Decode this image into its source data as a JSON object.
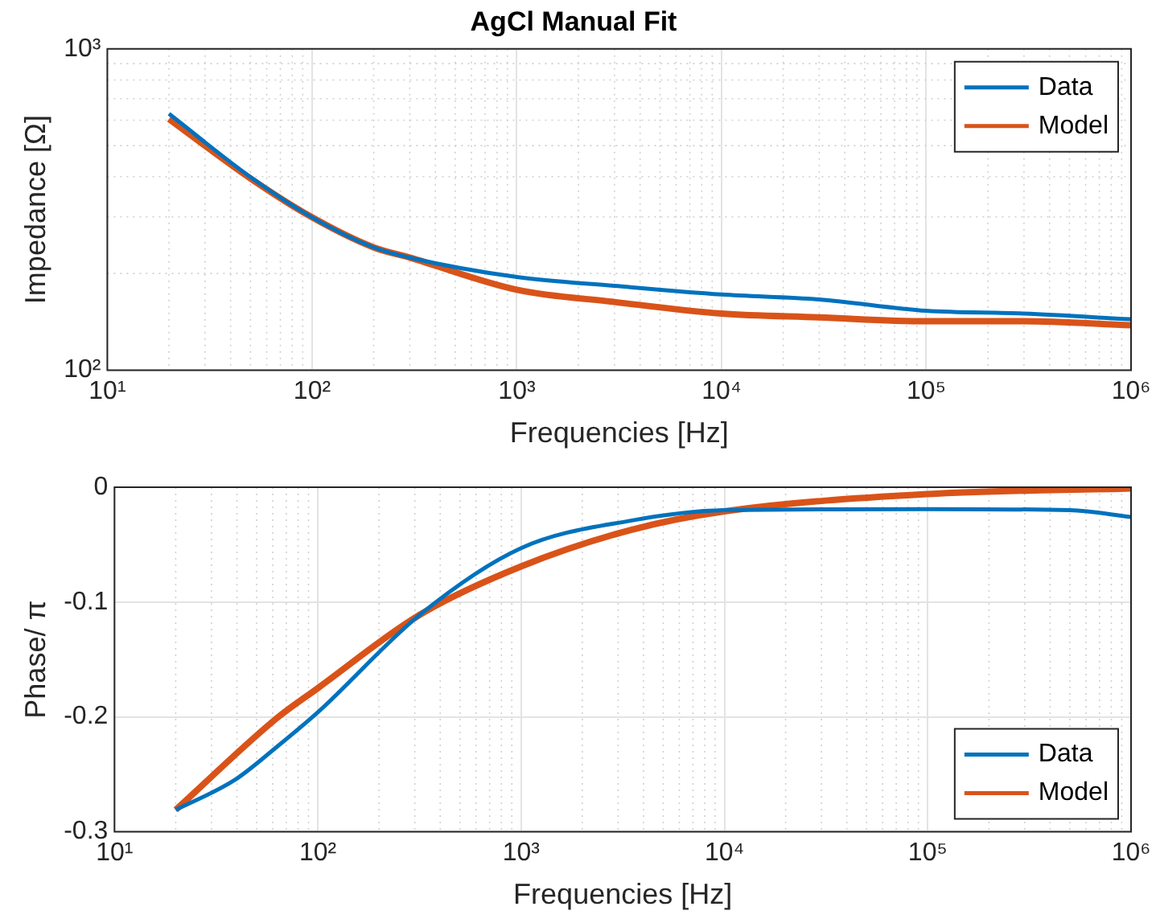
{
  "chart_data": [
    {
      "type": "line",
      "title": "AgCl Manual Fit",
      "xlabel": "Frequencies [Hz]",
      "ylabel": "Impedance [Ω]",
      "log": "xy",
      "grid": true,
      "legend": "top right",
      "xlim": [
        10,
        1000000
      ],
      "xticks": [
        {
          "value": 10,
          "label": "10¹"
        },
        {
          "value": 100,
          "label": "10²"
        },
        {
          "value": 1000,
          "label": "10³"
        },
        {
          "value": 10000,
          "label": "10⁴"
        },
        {
          "value": 100000,
          "label": "10⁵"
        },
        {
          "value": 1000000,
          "label": "10⁶"
        }
      ],
      "ylim": [
        100,
        1000
      ],
      "yticks": [
        {
          "value": 100,
          "label": "10²"
        },
        {
          "value": 1000,
          "label": "10³"
        }
      ],
      "series": [
        {
          "name": "Data",
          "color": "#0072bd",
          "x": [
            20,
            50,
            100,
            200,
            300,
            1000,
            3000,
            10000,
            30000,
            100000,
            300000,
            1000000
          ],
          "values": [
            628,
            399,
            299,
            241,
            224,
            195,
            183,
            172,
            166,
            153,
            150,
            144
          ]
        },
        {
          "name": "Model",
          "color": "#d95319",
          "x": [
            20,
            50,
            100,
            200,
            300,
            1000,
            3000,
            10000,
            30000,
            100000,
            300000,
            1000000
          ],
          "values": [
            605,
            395,
            299,
            241,
            224,
            178,
            163,
            150,
            146,
            142,
            142,
            138
          ]
        }
      ]
    },
    {
      "type": "line",
      "xlabel": "Frequencies [Hz]",
      "ylabel": "Phase/ π",
      "log": "x",
      "grid": true,
      "legend": "bottom right",
      "xlim": [
        10,
        1000000
      ],
      "xticks": [
        {
          "value": 10,
          "label": "10¹"
        },
        {
          "value": 100,
          "label": "10²"
        },
        {
          "value": 1000,
          "label": "10³"
        },
        {
          "value": 10000,
          "label": "10⁴"
        },
        {
          "value": 100000,
          "label": "10⁵"
        },
        {
          "value": 1000000,
          "label": "10⁶"
        }
      ],
      "ylim": [
        -0.3,
        0
      ],
      "yticks": [
        -0.3,
        -0.2,
        -0.1,
        0
      ],
      "series": [
        {
          "name": "Data",
          "color": "#0072bd",
          "x": [
            20,
            39,
            63,
            100,
            318,
            1000,
            3500,
            10000,
            100000,
            500000,
            1000000
          ],
          "values": [
            -0.281,
            -0.255,
            -0.226,
            -0.196,
            -0.111,
            -0.053,
            -0.029,
            -0.02,
            -0.019,
            -0.02,
            -0.026
          ]
        },
        {
          "name": "Model",
          "color": "#d95319",
          "x": [
            20,
            63,
            100,
            318,
            1000,
            3500,
            10000,
            100000,
            1000000
          ],
          "values": [
            -0.281,
            -0.201,
            -0.175,
            -0.111,
            -0.069,
            -0.037,
            -0.021,
            -0.006,
            -0.001
          ]
        }
      ]
    }
  ]
}
